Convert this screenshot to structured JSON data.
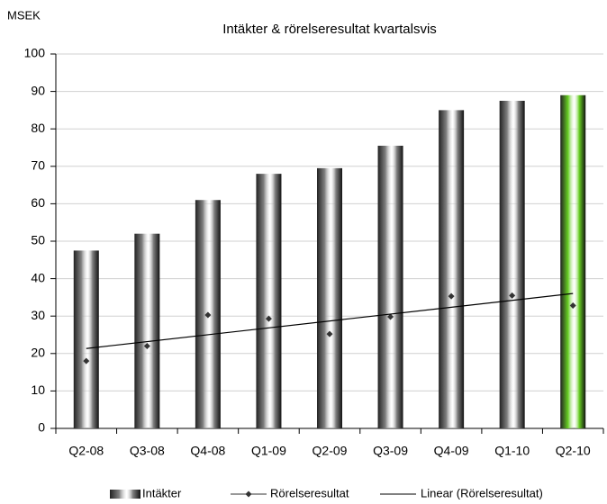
{
  "chart_data": {
    "type": "bar",
    "title": "Intäkter & rörelseresultat kvartalsvis",
    "y_label": "MSEK",
    "categories": [
      "Q2-08",
      "Q3-08",
      "Q4-08",
      "Q1-09",
      "Q2-09",
      "Q3-09",
      "Q4-09",
      "Q1-10",
      "Q2-10"
    ],
    "series": [
      {
        "name": "Intäkter",
        "type": "bar",
        "color": "#7f7f7f",
        "colors": [
          "#7f7f7f",
          "#7f7f7f",
          "#7f7f7f",
          "#7f7f7f",
          "#7f7f7f",
          "#7f7f7f",
          "#7f7f7f",
          "#7f7f7f",
          "#66cc22"
        ],
        "values": [
          47.5,
          52,
          61,
          68,
          69.5,
          75.5,
          85,
          87.5,
          89
        ]
      },
      {
        "name": "Rörelseresultat",
        "type": "line",
        "color": "#333333",
        "values": [
          18,
          22,
          30.3,
          29.3,
          25.2,
          29.8,
          35.3,
          35.5,
          32.8
        ]
      }
    ],
    "trendline": {
      "name": "Linear (Rörelseresultat)",
      "kind": "linear",
      "series": 1,
      "color": "#000000"
    },
    "ylim": [
      0,
      100
    ],
    "yticks": [
      0,
      10,
      20,
      30,
      40,
      50,
      60,
      70,
      80,
      90,
      100
    ],
    "grid": true
  }
}
